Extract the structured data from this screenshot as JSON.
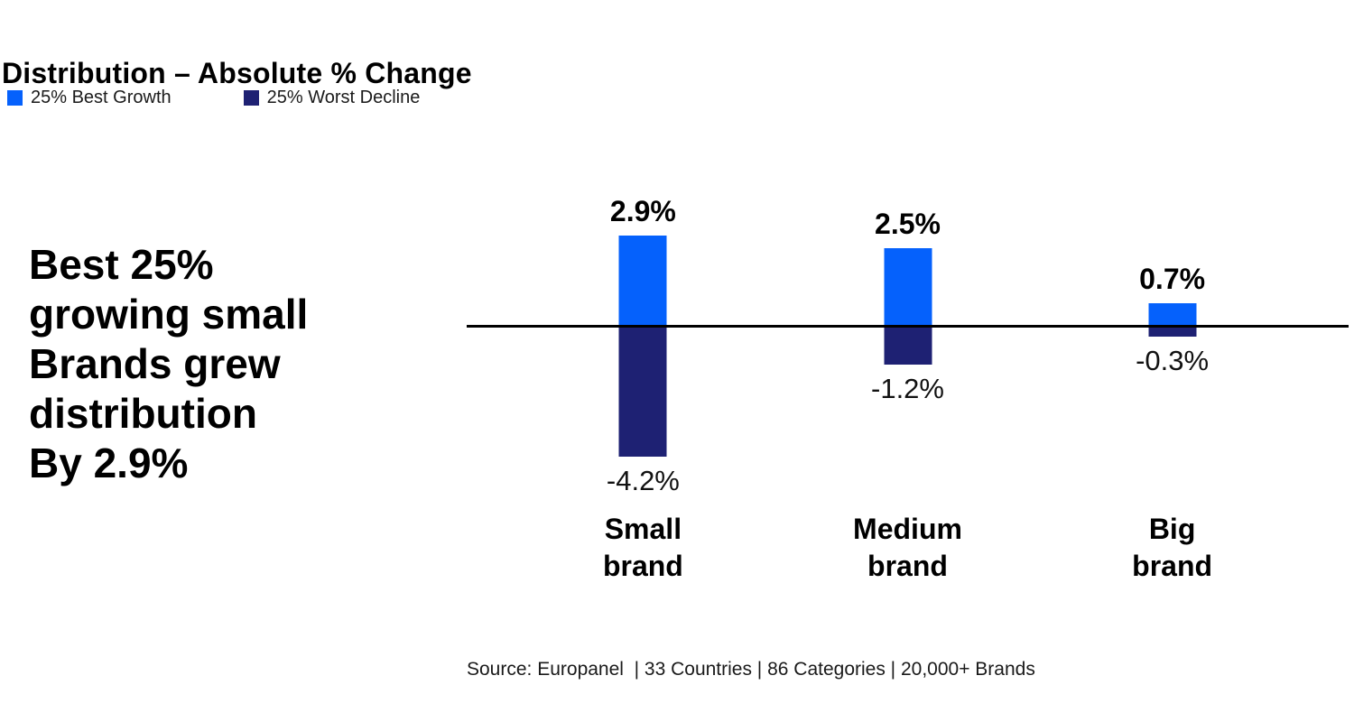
{
  "header": {
    "title": "Distribution – Absolute % Change"
  },
  "legend": {
    "items": [
      {
        "label": "25% Best Growth",
        "color": "#0561FC"
      },
      {
        "label": "25% Worst Decline",
        "color": "#1E2173"
      }
    ]
  },
  "key_message": {
    "text": "Best 25%\ngrowing small\nBrands grew\ndistribution\nBy 2.9%"
  },
  "chart_data": {
    "type": "bar",
    "categories": [
      "Small\nbrand",
      "Medium\nbrand",
      "Big\nbrand"
    ],
    "series": [
      {
        "name": "25% Best Growth",
        "color": "#0561FC",
        "values": [
          2.9,
          2.5,
          0.7
        ],
        "labels": [
          "2.9%",
          "2.5%",
          "0.7%"
        ]
      },
      {
        "name": "25% Worst Decline",
        "color": "#1E2173",
        "values": [
          -4.2,
          -1.2,
          -0.3
        ],
        "labels": [
          "-4.2%",
          "-1.2%",
          "-0.3%"
        ]
      }
    ],
    "title": "Distribution – Absolute % Change",
    "xlabel": "",
    "ylabel": "",
    "baseline": 0,
    "grid": false,
    "legend_position": "top-left"
  },
  "footer": {
    "source": "Source: Europanel  | 33 Countries | 86 Categories | 20,000+ Brands"
  }
}
